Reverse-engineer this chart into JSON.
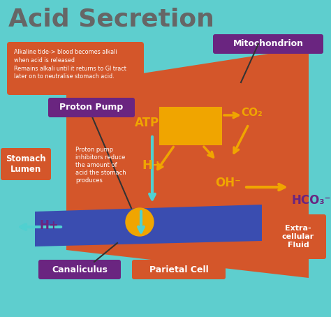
{
  "bg_color": "#5ecece",
  "title": "Acid Secretion",
  "title_color": "#666666",
  "title_fontsize": 26,
  "orange_color": "#d4562a",
  "yellow_color": "#f0a500",
  "blue_color": "#3a4db0",
  "purple_color": "#6a2580",
  "note_text": "Alkaline tide-> blood becomes alkali\nwhen acid is released\nRemains alkali until it returns to GI tract\nlater on to neutralise stomach acid.",
  "proton_pump_text": "Proton Pump",
  "stomach_lumen_text": "Stomach\nLumen",
  "canaliculus_text": "Canaliculus",
  "parietal_cell_text": "Parietal Cell",
  "mitochondrion_text": "Mitochondrion",
  "extracellular_text": "Extra-\ncellular\nFluid",
  "inhibitor_text": "Proton pump\ninhibitors reduce\nthe amount of\nacid the stomach\nproduces",
  "atp_text": "ATP",
  "hplus_text": "H+",
  "hplus_left_text": "H+",
  "co2_text": "CO₂",
  "ohm_text": "OH⁻",
  "hco3_text": "HCO₃⁻"
}
